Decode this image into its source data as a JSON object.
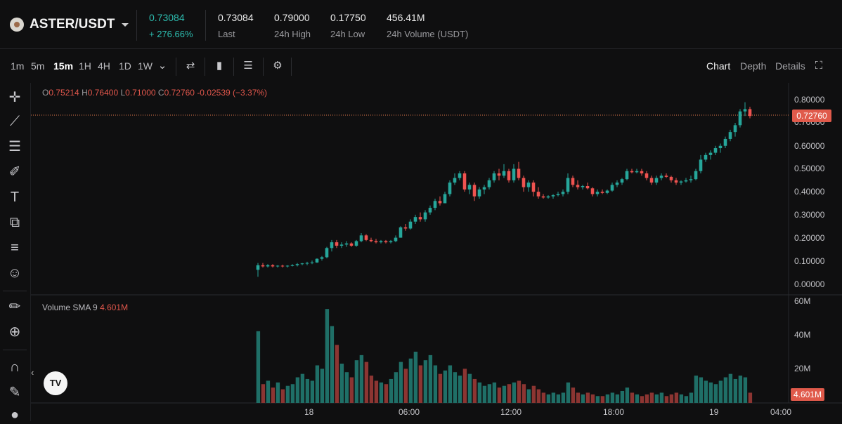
{
  "pair": {
    "name": "ASTER/USDT"
  },
  "ticker": {
    "price": "0.73084",
    "change": "+ 276.66%",
    "last_value": "0.73084",
    "last_label": "Last",
    "high_value": "0.79000",
    "high_label": "24h High",
    "low_value": "0.17750",
    "low_label": "24h Low",
    "volume_value": "456.41M",
    "volume_label": "24h Volume (USDT)"
  },
  "toolbar": {
    "timeframes": [
      "1m",
      "5m",
      "15m",
      "1H",
      "4H",
      "1D",
      "1W"
    ],
    "active_timeframe": "15m",
    "views": [
      "Chart",
      "Depth",
      "Details"
    ],
    "active_view": "Chart"
  },
  "ohlc": {
    "o_label": "O",
    "o": "0.75214",
    "h_label": "H",
    "h": "0.76400",
    "l_label": "L",
    "l": "0.71000",
    "c_label": "C",
    "c": "0.72760",
    "change": "-0.02539",
    "change_pct": "(−3.37%)"
  },
  "volume_indicator": {
    "label": "Volume SMA 9",
    "value": "4.601M"
  },
  "price_axis": [
    "0.80000",
    "0.70000",
    "0.60000",
    "0.50000",
    "0.40000",
    "0.30000",
    "0.20000",
    "0.10000",
    "0.00000"
  ],
  "last_price_badge": "0.72760",
  "volume_axis": [
    "60M",
    "40M",
    "20M"
  ],
  "volume_badge": "4.601M",
  "time_axis": [
    "18",
    "06:00",
    "12:00",
    "18:00",
    "19",
    "04:00"
  ],
  "colors": {
    "up": "#26a69a",
    "down": "#ef5350",
    "accent_green": "#2dbdb0",
    "badge_red": "#e05a4b"
  },
  "icons": [
    "crosshair-icon",
    "trendline-icon",
    "fib-icon",
    "brush-icon",
    "text-icon",
    "pattern-icon",
    "measure-icon",
    "emoji-icon",
    "ruler-icon",
    "zoom-icon",
    "magnet-icon",
    "lock-draw-icon",
    "lock-icon"
  ],
  "chart_data": {
    "type": "candlestick",
    "price_range": [
      0,
      0.85
    ],
    "volume_range": [
      0,
      60
    ],
    "candles": [
      [
        0.06,
        0.09,
        0.03,
        0.08,
        42
      ],
      [
        0.08,
        0.09,
        0.07,
        0.075,
        11
      ],
      [
        0.075,
        0.085,
        0.07,
        0.08,
        13
      ],
      [
        0.08,
        0.085,
        0.07,
        0.075,
        9
      ],
      [
        0.075,
        0.08,
        0.07,
        0.078,
        12
      ],
      [
        0.078,
        0.082,
        0.07,
        0.075,
        8
      ],
      [
        0.075,
        0.08,
        0.07,
        0.078,
        10
      ],
      [
        0.078,
        0.085,
        0.075,
        0.08,
        11
      ],
      [
        0.08,
        0.09,
        0.075,
        0.085,
        15
      ],
      [
        0.085,
        0.09,
        0.08,
        0.088,
        17
      ],
      [
        0.088,
        0.095,
        0.08,
        0.09,
        14
      ],
      [
        0.09,
        0.1,
        0.085,
        0.092,
        13
      ],
      [
        0.092,
        0.11,
        0.09,
        0.108,
        22
      ],
      [
        0.108,
        0.12,
        0.1,
        0.115,
        20
      ],
      [
        0.115,
        0.16,
        0.11,
        0.155,
        55
      ],
      [
        0.155,
        0.19,
        0.14,
        0.18,
        45
      ],
      [
        0.18,
        0.19,
        0.155,
        0.165,
        34
      ],
      [
        0.165,
        0.18,
        0.155,
        0.17,
        23
      ],
      [
        0.17,
        0.185,
        0.16,
        0.175,
        18
      ],
      [
        0.175,
        0.18,
        0.16,
        0.165,
        15
      ],
      [
        0.165,
        0.19,
        0.16,
        0.185,
        25
      ],
      [
        0.185,
        0.22,
        0.18,
        0.21,
        28
      ],
      [
        0.21,
        0.215,
        0.185,
        0.19,
        24
      ],
      [
        0.19,
        0.2,
        0.18,
        0.185,
        16
      ],
      [
        0.185,
        0.195,
        0.175,
        0.18,
        13
      ],
      [
        0.18,
        0.19,
        0.175,
        0.185,
        12
      ],
      [
        0.185,
        0.19,
        0.175,
        0.18,
        11
      ],
      [
        0.18,
        0.19,
        0.175,
        0.185,
        14
      ],
      [
        0.185,
        0.21,
        0.18,
        0.2,
        18
      ],
      [
        0.2,
        0.25,
        0.2,
        0.245,
        24
      ],
      [
        0.245,
        0.26,
        0.23,
        0.24,
        20
      ],
      [
        0.24,
        0.28,
        0.235,
        0.27,
        26
      ],
      [
        0.27,
        0.3,
        0.26,
        0.29,
        30
      ],
      [
        0.29,
        0.31,
        0.27,
        0.28,
        22
      ],
      [
        0.28,
        0.32,
        0.27,
        0.31,
        25
      ],
      [
        0.31,
        0.34,
        0.3,
        0.33,
        28
      ],
      [
        0.33,
        0.37,
        0.32,
        0.36,
        22
      ],
      [
        0.36,
        0.38,
        0.34,
        0.35,
        17
      ],
      [
        0.35,
        0.4,
        0.35,
        0.39,
        19
      ],
      [
        0.39,
        0.45,
        0.38,
        0.44,
        22
      ],
      [
        0.44,
        0.48,
        0.43,
        0.46,
        18
      ],
      [
        0.46,
        0.49,
        0.45,
        0.48,
        16
      ],
      [
        0.48,
        0.49,
        0.4,
        0.41,
        20
      ],
      [
        0.41,
        0.44,
        0.39,
        0.43,
        17
      ],
      [
        0.43,
        0.44,
        0.36,
        0.38,
        14
      ],
      [
        0.38,
        0.42,
        0.37,
        0.41,
        12
      ],
      [
        0.41,
        0.43,
        0.39,
        0.42,
        10
      ],
      [
        0.42,
        0.46,
        0.41,
        0.45,
        11
      ],
      [
        0.45,
        0.49,
        0.44,
        0.48,
        12
      ],
      [
        0.48,
        0.5,
        0.45,
        0.47,
        9
      ],
      [
        0.47,
        0.52,
        0.46,
        0.49,
        10
      ],
      [
        0.49,
        0.5,
        0.44,
        0.45,
        11
      ],
      [
        0.45,
        0.52,
        0.44,
        0.5,
        12
      ],
      [
        0.5,
        0.53,
        0.45,
        0.46,
        13
      ],
      [
        0.46,
        0.47,
        0.4,
        0.42,
        11
      ],
      [
        0.42,
        0.45,
        0.4,
        0.44,
        8
      ],
      [
        0.44,
        0.45,
        0.38,
        0.4,
        10
      ],
      [
        0.4,
        0.42,
        0.37,
        0.38,
        8
      ],
      [
        0.38,
        0.39,
        0.37,
        0.375,
        6
      ],
      [
        0.375,
        0.385,
        0.37,
        0.38,
        5
      ],
      [
        0.38,
        0.39,
        0.37,
        0.385,
        6
      ],
      [
        0.385,
        0.4,
        0.38,
        0.39,
        5
      ],
      [
        0.39,
        0.41,
        0.38,
        0.4,
        6
      ],
      [
        0.4,
        0.48,
        0.39,
        0.46,
        12
      ],
      [
        0.46,
        0.47,
        0.42,
        0.43,
        9
      ],
      [
        0.43,
        0.45,
        0.41,
        0.42,
        6
      ],
      [
        0.42,
        0.43,
        0.41,
        0.425,
        5
      ],
      [
        0.425,
        0.44,
        0.41,
        0.415,
        6
      ],
      [
        0.415,
        0.42,
        0.38,
        0.39,
        5
      ],
      [
        0.39,
        0.41,
        0.38,
        0.4,
        4
      ],
      [
        0.4,
        0.41,
        0.39,
        0.395,
        4
      ],
      [
        0.395,
        0.41,
        0.39,
        0.405,
        5
      ],
      [
        0.405,
        0.44,
        0.4,
        0.43,
        6
      ],
      [
        0.43,
        0.45,
        0.42,
        0.44,
        5
      ],
      [
        0.44,
        0.46,
        0.43,
        0.455,
        7
      ],
      [
        0.455,
        0.5,
        0.45,
        0.49,
        9
      ],
      [
        0.49,
        0.5,
        0.48,
        0.485,
        6
      ],
      [
        0.485,
        0.5,
        0.48,
        0.49,
        5
      ],
      [
        0.49,
        0.5,
        0.47,
        0.48,
        4
      ],
      [
        0.48,
        0.49,
        0.45,
        0.46,
        5
      ],
      [
        0.46,
        0.47,
        0.43,
        0.44,
        6
      ],
      [
        0.44,
        0.47,
        0.43,
        0.46,
        5
      ],
      [
        0.46,
        0.48,
        0.45,
        0.47,
        6
      ],
      [
        0.47,
        0.48,
        0.46,
        0.465,
        4
      ],
      [
        0.465,
        0.47,
        0.44,
        0.45,
        5
      ],
      [
        0.45,
        0.46,
        0.43,
        0.44,
        6
      ],
      [
        0.44,
        0.45,
        0.43,
        0.445,
        5
      ],
      [
        0.445,
        0.46,
        0.44,
        0.45,
        4
      ],
      [
        0.45,
        0.47,
        0.44,
        0.455,
        6
      ],
      [
        0.455,
        0.5,
        0.45,
        0.49,
        16
      ],
      [
        0.49,
        0.56,
        0.48,
        0.54,
        15
      ],
      [
        0.54,
        0.57,
        0.53,
        0.56,
        13
      ],
      [
        0.56,
        0.58,
        0.54,
        0.57,
        12
      ],
      [
        0.57,
        0.6,
        0.56,
        0.59,
        11
      ],
      [
        0.59,
        0.61,
        0.57,
        0.6,
        13
      ],
      [
        0.6,
        0.64,
        0.59,
        0.63,
        15
      ],
      [
        0.63,
        0.67,
        0.62,
        0.66,
        17
      ],
      [
        0.66,
        0.7,
        0.64,
        0.69,
        14
      ],
      [
        0.69,
        0.76,
        0.68,
        0.75,
        16
      ],
      [
        0.75,
        0.79,
        0.73,
        0.76,
        15
      ],
      [
        0.76,
        0.77,
        0.72,
        0.73,
        6
      ]
    ]
  }
}
